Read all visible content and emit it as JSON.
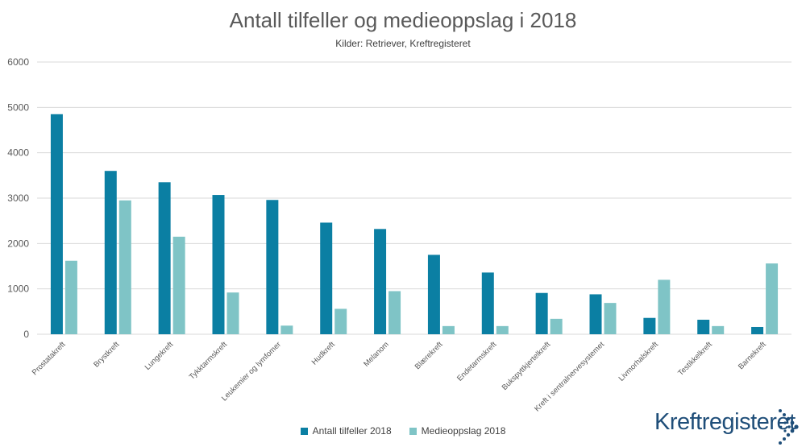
{
  "colors": {
    "series1": "#0b7fa3",
    "series2": "#7fc4c6",
    "grid": "#d9d9d9",
    "axis_text": "#595959",
    "logo": "#1f4e79"
  },
  "chart_data": {
    "type": "bar",
    "title": "Antall tilfeller og medieoppslag i 2018",
    "subtitle": "Kilder: Retriever, Kreftregisteret",
    "xlabel": "",
    "ylabel": "",
    "ylim": [
      0,
      6000
    ],
    "yticks": [
      0,
      1000,
      2000,
      3000,
      4000,
      5000,
      6000
    ],
    "grid": true,
    "legend_position": "bottom",
    "categories": [
      "Prostatakreft",
      "Brystkreft",
      "Lungekreft",
      "Tykktarmskreft",
      "Leukemier og lymfomer",
      "Hudkreft",
      "Melanom",
      "Blærekreft",
      "Endetarmskreft",
      "Bukspyttkjertelkreft",
      "Kreft i sentralnervesystemet",
      "Livmorhalskreft",
      "Testikkelkreft",
      "Barnekreft"
    ],
    "series": [
      {
        "name": "Antall tilfeller 2018",
        "values": [
          4850,
          3600,
          3350,
          3070,
          2960,
          2460,
          2320,
          1750,
          1360,
          910,
          880,
          360,
          320,
          160
        ]
      },
      {
        "name": "Medieoppslag 2018",
        "values": [
          1620,
          2950,
          2150,
          920,
          190,
          560,
          950,
          180,
          180,
          340,
          690,
          1200,
          180,
          1560
        ]
      }
    ]
  },
  "logo": {
    "text": "Kreftregisteret"
  }
}
